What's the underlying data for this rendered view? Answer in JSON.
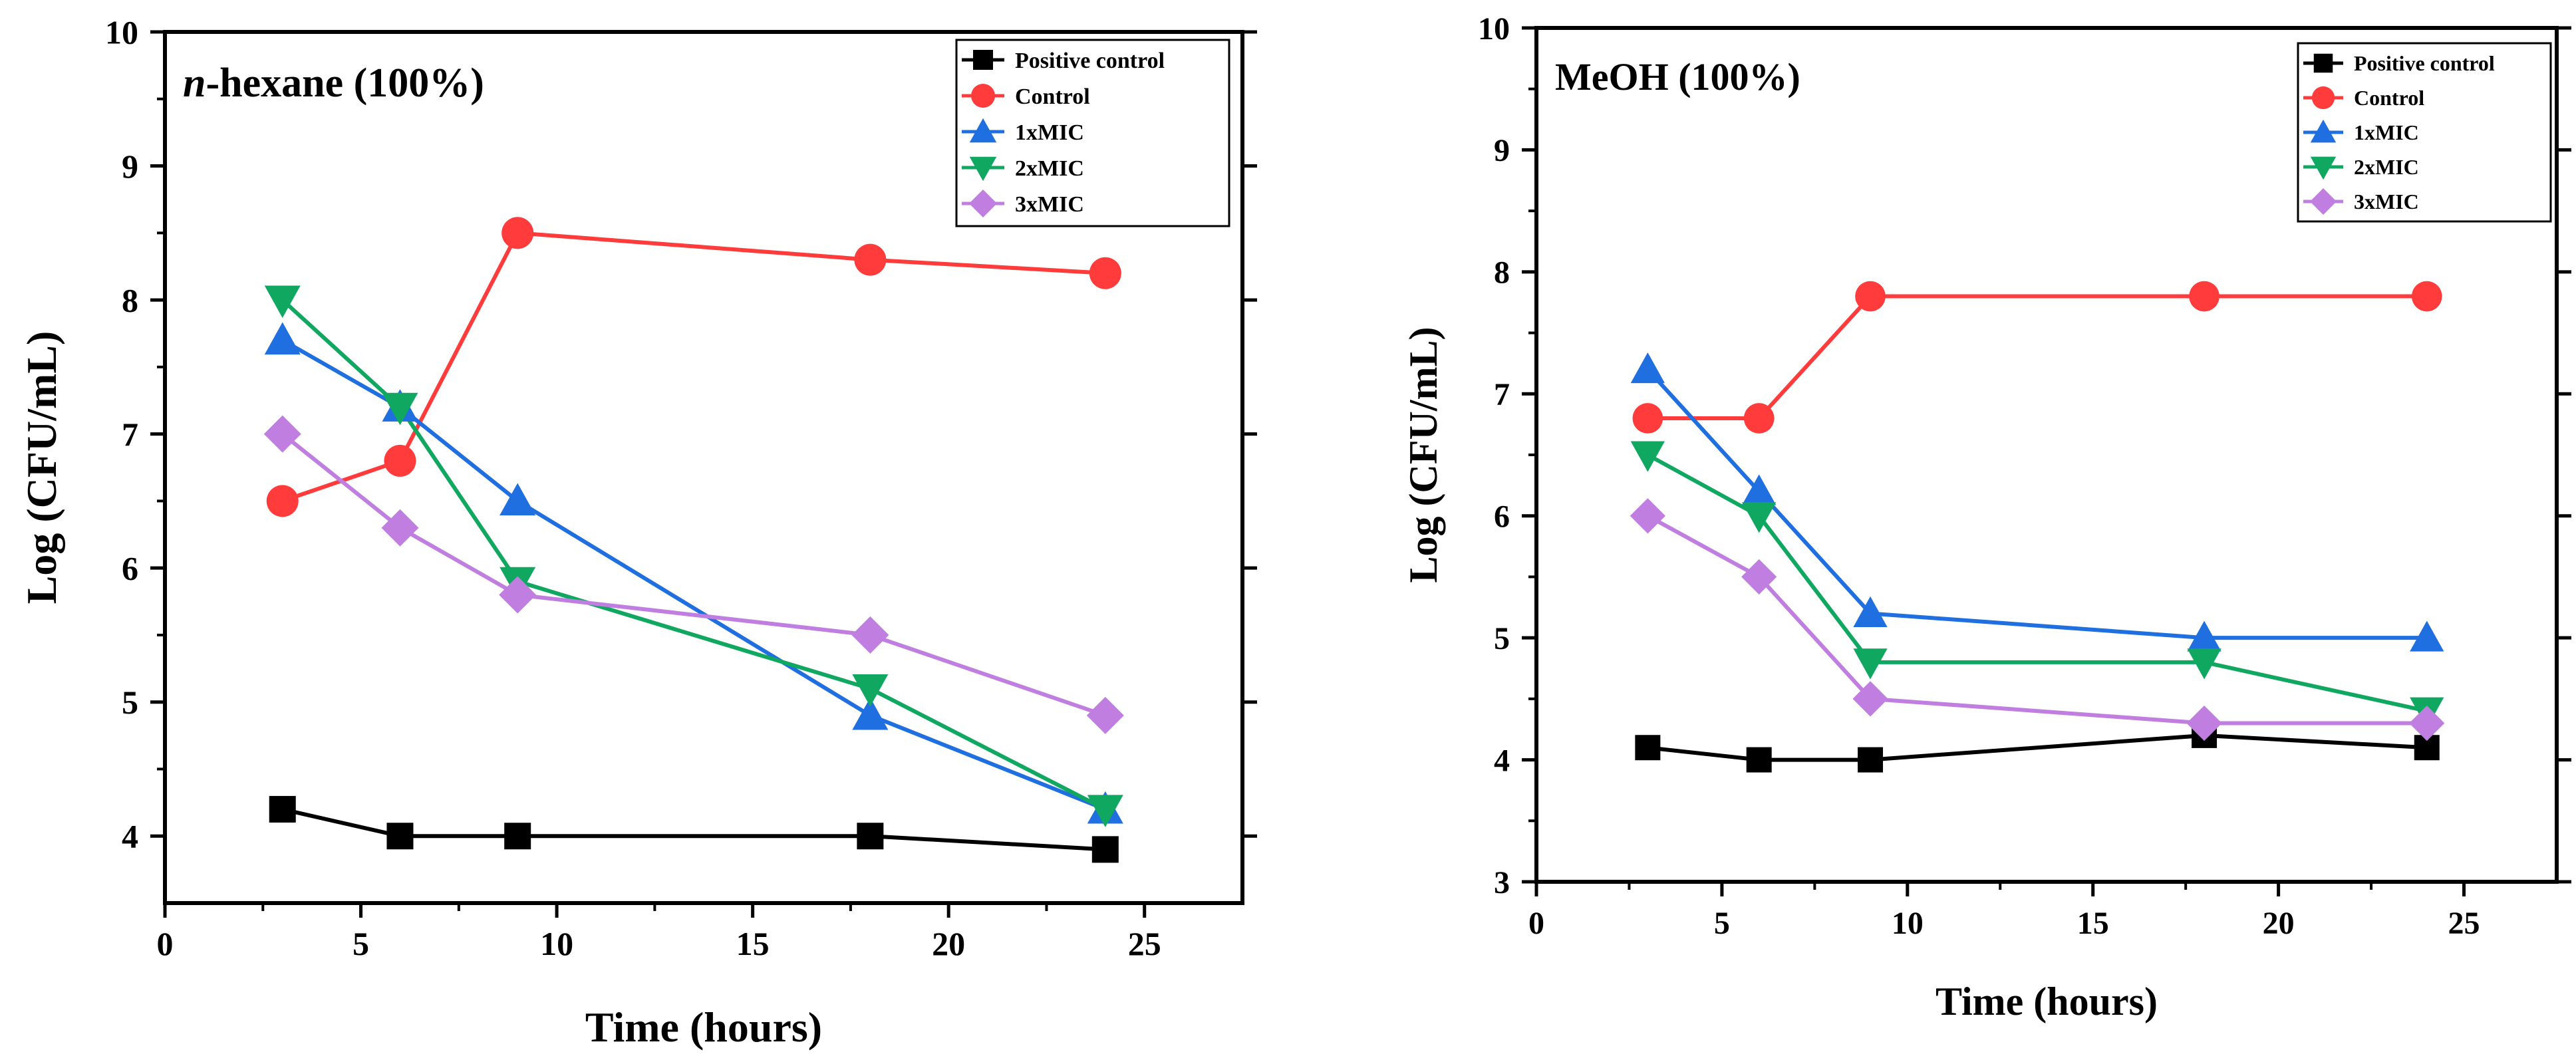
{
  "chart_data": [
    {
      "type": "line",
      "title": "n-hexane (100%)",
      "title_italic": "n",
      "title_rest": "-hexane (100%)",
      "xlabel": "Time (hours)",
      "ylabel": "Log (CFU/mL)",
      "xlim": [
        0,
        27.5
      ],
      "ylim": [
        3.5,
        10
      ],
      "xticks": [
        0,
        5,
        10,
        15,
        20,
        25
      ],
      "yticks": [
        4,
        5,
        6,
        7,
        8,
        9,
        10
      ],
      "grid": false,
      "legend_position": "top-right",
      "x": [
        3,
        6,
        9,
        18,
        24
      ],
      "series": [
        {
          "name": "Positive control",
          "color": "#000000",
          "marker": "square",
          "values": [
            4.2,
            4.0,
            4.0,
            4.0,
            3.9
          ]
        },
        {
          "name": "Control",
          "color": "#ff3b3b",
          "marker": "circle",
          "values": [
            6.5,
            6.8,
            8.5,
            8.3,
            8.2
          ]
        },
        {
          "name": "1xMIC",
          "color": "#1f6fe0",
          "marker": "triangle-up",
          "values": [
            7.7,
            7.2,
            6.5,
            4.9,
            4.2
          ]
        },
        {
          "name": "2xMIC",
          "color": "#10a860",
          "marker": "triangle-down",
          "values": [
            8.0,
            7.2,
            5.9,
            5.1,
            4.2
          ]
        },
        {
          "name": "3xMIC",
          "color": "#c07ee0",
          "marker": "diamond",
          "values": [
            7.0,
            6.3,
            5.8,
            5.5,
            4.9
          ]
        }
      ]
    },
    {
      "type": "line",
      "title": "MeOH (100%)",
      "title_italic": "",
      "title_rest": "MeOH (100%)",
      "xlabel": "Time (hours)",
      "ylabel": "Log (CFU/mL)",
      "xlim": [
        0,
        27.5
      ],
      "ylim": [
        3,
        10
      ],
      "xticks": [
        0,
        5,
        10,
        15,
        20,
        25
      ],
      "yticks": [
        3,
        4,
        5,
        6,
        7,
        8,
        9,
        10
      ],
      "grid": false,
      "legend_position": "top-right",
      "x": [
        3,
        6,
        9,
        18,
        24
      ],
      "series": [
        {
          "name": "Positive control",
          "color": "#000000",
          "marker": "square",
          "values": [
            4.1,
            4.0,
            4.0,
            4.2,
            4.1
          ]
        },
        {
          "name": "Control",
          "color": "#ff3b3b",
          "marker": "circle",
          "values": [
            6.8,
            6.8,
            7.8,
            7.8,
            7.8
          ]
        },
        {
          "name": "1xMIC",
          "color": "#1f6fe0",
          "marker": "triangle-up",
          "values": [
            7.2,
            6.2,
            5.2,
            5.0,
            5.0
          ]
        },
        {
          "name": "2xMIC",
          "color": "#10a860",
          "marker": "triangle-down",
          "values": [
            6.5,
            6.0,
            4.8,
            4.8,
            4.4
          ]
        },
        {
          "name": "3xMIC",
          "color": "#c07ee0",
          "marker": "diamond",
          "values": [
            6.0,
            5.5,
            4.5,
            4.3,
            4.3
          ]
        }
      ]
    }
  ]
}
